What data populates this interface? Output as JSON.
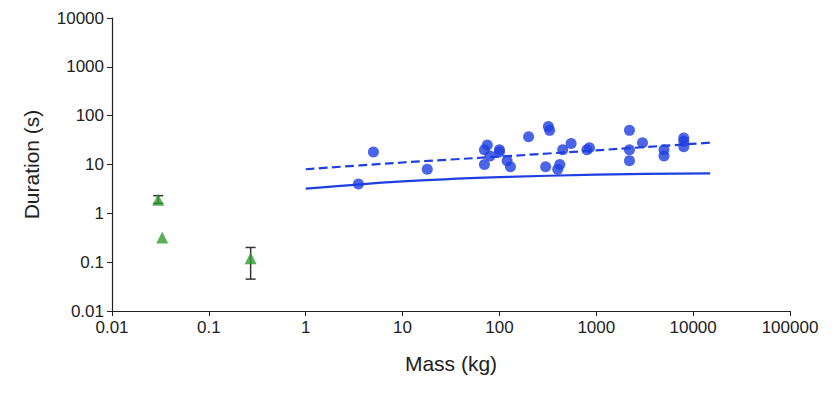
{
  "chart_data": {
    "type": "scatter",
    "x_label": "Mass (kg)",
    "y_label": "Duration (s)",
    "log": true,
    "grid": false,
    "xlim": [
      0.01,
      100000
    ],
    "xticks": [
      0.01,
      0.1,
      1,
      10,
      100,
      1000,
      10000,
      100000
    ],
    "ylim": [
      0.01,
      10000
    ],
    "yticks": [
      0.01,
      0.1,
      1,
      10,
      100,
      1000,
      10000
    ],
    "series": [
      {
        "type": "scatter",
        "marker": "triangle",
        "color": "#2f9a2f",
        "x": [
          0.03,
          0.033,
          0.27
        ],
        "values": [
          1.9,
          0.32,
          0.12
        ],
        "error_low": [
          1.6,
          null,
          0.045
        ],
        "error_high": [
          2.3,
          null,
          0.2
        ]
      },
      {
        "type": "scatter",
        "marker": "circle",
        "color": "#1f3fe0",
        "x": [
          3.5,
          5,
          18,
          70,
          70,
          75,
          80,
          100,
          100,
          120,
          130,
          200,
          300,
          320,
          330,
          400,
          420,
          450,
          550,
          800,
          850,
          2200,
          2200,
          2200,
          3000,
          5000,
          5000,
          8000,
          8000,
          8000
        ],
        "values": [
          4,
          18,
          8,
          10,
          20,
          25,
          15,
          18,
          20,
          12,
          9,
          37,
          9,
          60,
          50,
          8,
          10,
          20,
          27,
          20,
          22,
          50,
          12,
          20,
          28,
          15,
          20,
          23,
          30,
          35
        ]
      },
      {
        "type": "line",
        "line_style": "dashed",
        "color": "#1f3fe0",
        "x": [
          1,
          10,
          100,
          1000,
          15000
        ],
        "values": [
          8,
          11,
          14.5,
          19.5,
          28
        ]
      },
      {
        "type": "line",
        "line_style": "solid",
        "color": "#1f3fe0",
        "x": [
          1,
          10,
          100,
          1000,
          15000
        ],
        "values": [
          3.2,
          4.5,
          5.5,
          6.2,
          6.6
        ]
      }
    ]
  }
}
